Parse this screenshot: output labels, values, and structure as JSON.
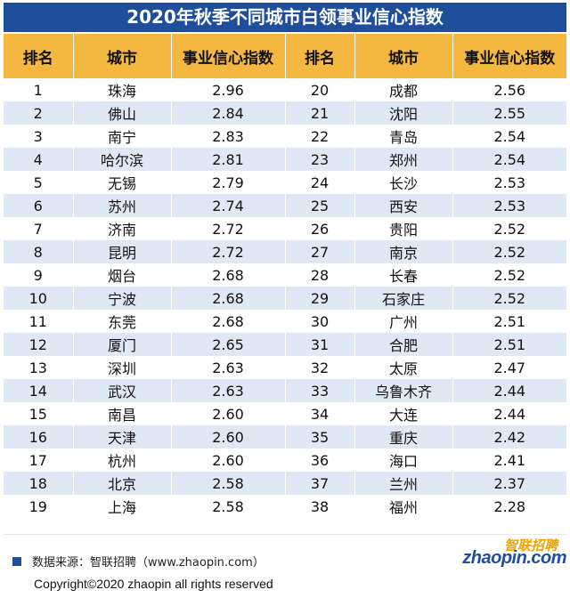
{
  "title": "2020年秋季不同城市白领事业信心指数",
  "headers": [
    "排名",
    "城市",
    "事业信心指数",
    "排名",
    "城市",
    "事业信心指数"
  ],
  "rows": [
    [
      "1",
      "珠海",
      "2.96",
      "20",
      "成都",
      "2.56"
    ],
    [
      "2",
      "佛山",
      "2.84",
      "21",
      "沈阳",
      "2.55"
    ],
    [
      "3",
      "南宁",
      "2.83",
      "22",
      "青岛",
      "2.54"
    ],
    [
      "4",
      "哈尔滨",
      "2.81",
      "23",
      "郑州",
      "2.54"
    ],
    [
      "5",
      "无锡",
      "2.79",
      "24",
      "长沙",
      "2.53"
    ],
    [
      "6",
      "苏州",
      "2.74",
      "25",
      "西安",
      "2.53"
    ],
    [
      "7",
      "济南",
      "2.72",
      "26",
      "贵阳",
      "2.52"
    ],
    [
      "8",
      "昆明",
      "2.72",
      "27",
      "南京",
      "2.52"
    ],
    [
      "9",
      "烟台",
      "2.68",
      "28",
      "长春",
      "2.52"
    ],
    [
      "10",
      "宁波",
      "2.68",
      "29",
      "石家庄",
      "2.52"
    ],
    [
      "11",
      "东莞",
      "2.68",
      "30",
      "广州",
      "2.51"
    ],
    [
      "12",
      "厦门",
      "2.65",
      "31",
      "合肥",
      "2.51"
    ],
    [
      "13",
      "深圳",
      "2.63",
      "32",
      "太原",
      "2.47"
    ],
    [
      "14",
      "武汉",
      "2.63",
      "33",
      "乌鲁木齐",
      "2.44"
    ],
    [
      "15",
      "南昌",
      "2.60",
      "34",
      "大连",
      "2.44"
    ],
    [
      "16",
      "天津",
      "2.60",
      "35",
      "重庆",
      "2.42"
    ],
    [
      "17",
      "杭州",
      "2.60",
      "36",
      "海口",
      "2.41"
    ],
    [
      "18",
      "北京",
      "2.58",
      "37",
      "兰州",
      "2.37"
    ],
    [
      "19",
      "上海",
      "2.58",
      "38",
      "福州",
      "2.28"
    ]
  ],
  "footer": {
    "source": "数据来源：智联招聘（www.zhaopin.com）",
    "copyright": "Copyright©2020 zhaopin all rights reserved",
    "logo_cn": "智联招聘",
    "logo_en": "zhaopin.com"
  },
  "colors": {
    "title_bg": "#1f4e9c",
    "header_bg": "#f4b73f",
    "row_alt_bg": "#dfe8f5",
    "logo_orange": "#f4a000"
  }
}
